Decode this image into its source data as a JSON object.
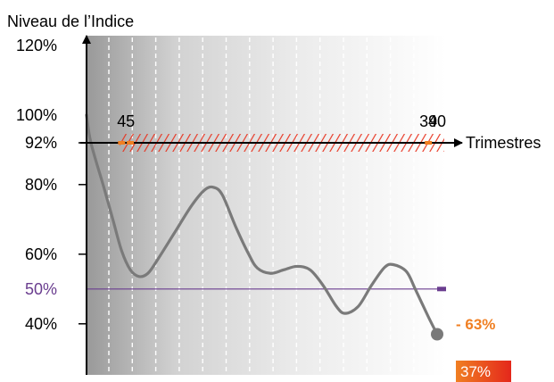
{
  "chart_data": {
    "type": "line",
    "title": "",
    "ylabel": "Niveau de l’Indice",
    "xlabel": "Trimestres",
    "ylim": [
      35,
      130
    ],
    "xlim": [
      0,
      40
    ],
    "y_ticks": [
      {
        "value": 120,
        "label": "120%"
      },
      {
        "value": 100,
        "label": "100%"
      },
      {
        "value": 92,
        "label": "92%"
      },
      {
        "value": 80,
        "label": "80%"
      },
      {
        "value": 60,
        "label": "60%"
      },
      {
        "value": 50,
        "label": "50%"
      },
      {
        "value": 40,
        "label": "40%"
      }
    ],
    "x_markers": [
      {
        "value": 4,
        "label": "4"
      },
      {
        "value": 5,
        "label": "5"
      },
      {
        "value": 39,
        "label": "39"
      },
      {
        "value": 40,
        "label": "40"
      }
    ],
    "series": [
      {
        "points": [
          [
            0,
            100
          ],
          [
            0.5,
            92
          ],
          [
            2,
            79
          ],
          [
            3,
            70
          ],
          [
            4,
            61
          ],
          [
            5,
            55.5
          ],
          [
            6,
            53.6
          ],
          [
            7,
            54.5
          ],
          [
            8,
            58
          ],
          [
            10,
            66
          ],
          [
            12,
            74
          ],
          [
            13.5,
            78.5
          ],
          [
            14.5,
            79.2
          ],
          [
            15.5,
            77
          ],
          [
            17,
            68
          ],
          [
            18.5,
            60
          ],
          [
            19.5,
            56
          ],
          [
            21,
            54.5
          ],
          [
            22.5,
            55.5
          ],
          [
            24,
            56.5
          ],
          [
            25.5,
            55.5
          ],
          [
            27,
            51
          ],
          [
            28.5,
            45
          ],
          [
            29.5,
            43
          ],
          [
            31,
            45
          ],
          [
            32.5,
            51
          ],
          [
            34,
            56.2
          ],
          [
            35,
            57
          ],
          [
            36.5,
            55
          ],
          [
            37.5,
            50
          ],
          [
            39,
            42
          ],
          [
            40,
            37
          ]
        ],
        "color": "#7a7a7a"
      }
    ],
    "hatched_barrier": {
      "value": 92,
      "from": 4,
      "to": 40,
      "color": "#e8321e"
    },
    "threshold_line": {
      "value": 50,
      "label": "50%",
      "color": "#6a3d8f"
    },
    "final_point": {
      "x": 40,
      "y": 37
    },
    "annotations": {
      "drop": "- 63%",
      "final": "37%"
    },
    "colors": {
      "axis": "#000000",
      "orange": "#f07f22",
      "purple": "#6a3d8f",
      "hatch": "#e8321e"
    },
    "grid": false,
    "legend": "none"
  }
}
